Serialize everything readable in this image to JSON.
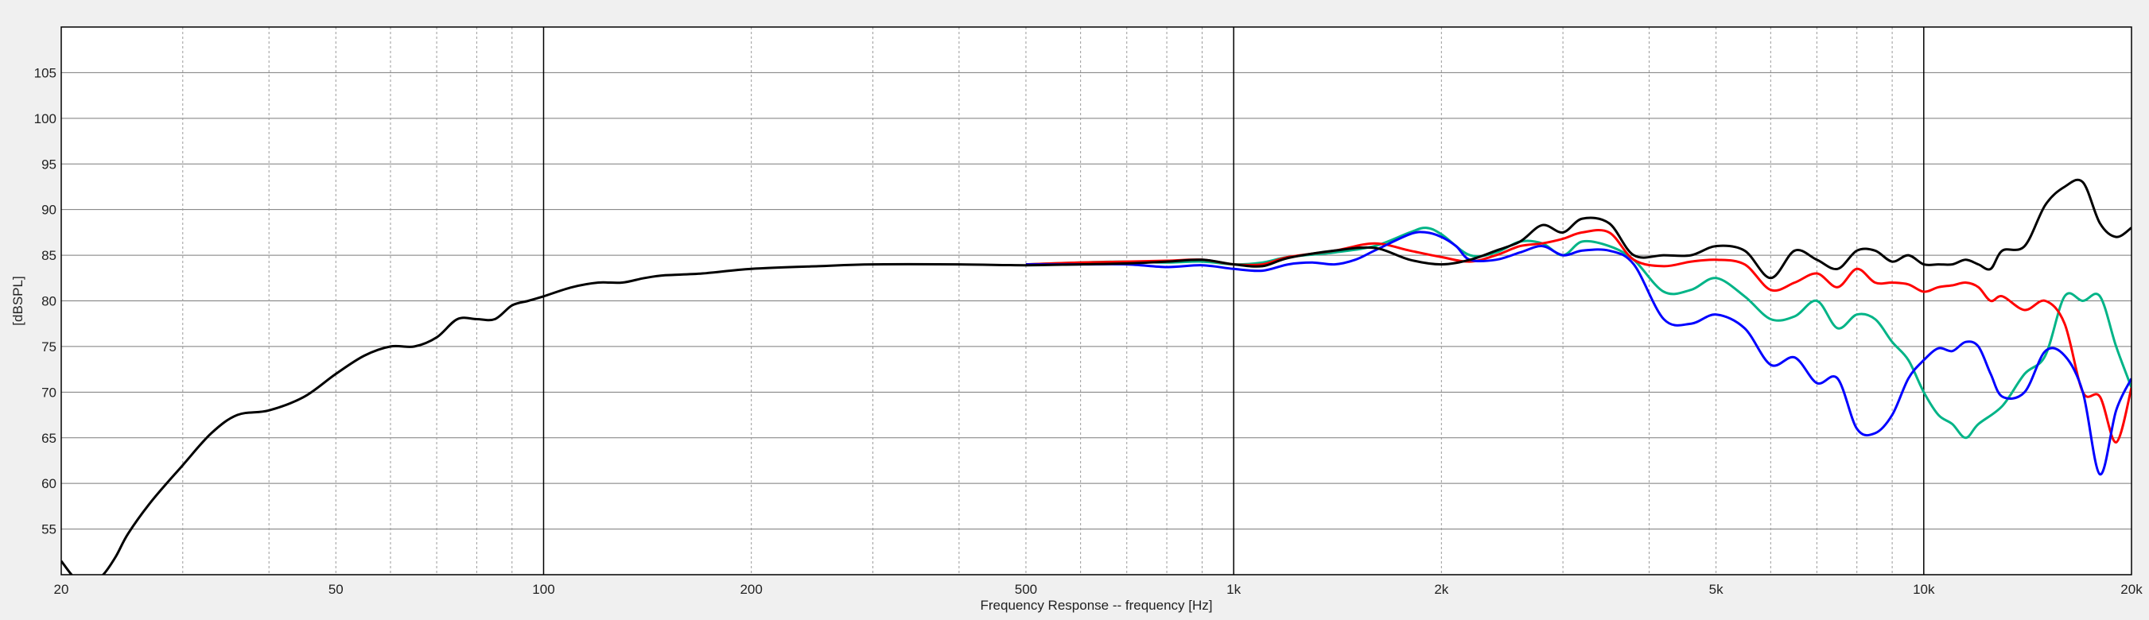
{
  "chart_data": {
    "type": "line",
    "title": "",
    "xlabel": "Frequency Response -- frequency [Hz]",
    "ylabel": "[dBSPL]",
    "x_scale": "log",
    "xlim": [
      20,
      20000
    ],
    "ylim": [
      50,
      110
    ],
    "grid": true,
    "x_tick_labels": [
      {
        "value": 20,
        "label": "20"
      },
      {
        "value": 50,
        "label": "50"
      },
      {
        "value": 100,
        "label": "100"
      },
      {
        "value": 200,
        "label": "200"
      },
      {
        "value": 500,
        "label": "500"
      },
      {
        "value": 1000,
        "label": "1k"
      },
      {
        "value": 2000,
        "label": "2k"
      },
      {
        "value": 5000,
        "label": "5k"
      },
      {
        "value": 10000,
        "label": "10k"
      },
      {
        "value": 20000,
        "label": "20k"
      }
    ],
    "y_tick_labels": [
      {
        "value": 55,
        "label": "55"
      },
      {
        "value": 60,
        "label": "60"
      },
      {
        "value": 65,
        "label": "65"
      },
      {
        "value": 70,
        "label": "70"
      },
      {
        "value": 75,
        "label": "75"
      },
      {
        "value": 80,
        "label": "80"
      },
      {
        "value": 85,
        "label": "85"
      },
      {
        "value": 90,
        "label": "90"
      },
      {
        "value": 95,
        "label": "95"
      },
      {
        "value": 100,
        "label": "100"
      },
      {
        "value": 105,
        "label": "105"
      }
    ],
    "series": [
      {
        "color": "#00b487",
        "x": [
          500,
          600,
          700,
          800,
          900,
          1000,
          1100,
          1200,
          1400,
          1600,
          1800,
          1900,
          2000,
          2200,
          2400,
          2600,
          2800,
          3000,
          3200,
          3500,
          3800,
          4200,
          4600,
          5000,
          5500,
          6000,
          6500,
          7000,
          7500,
          8000,
          8500,
          9000,
          9500,
          10000,
          10500,
          11000,
          11500,
          12000,
          13000,
          14000,
          15000,
          16000,
          17000,
          18000,
          19000,
          20000
        ],
        "y": [
          84.0,
          84.2,
          84.3,
          84.2,
          84.3,
          84.0,
          84.2,
          84.8,
          85.3,
          86.0,
          87.5,
          88.0,
          87.3,
          85.0,
          85.3,
          86.5,
          86.3,
          85.0,
          86.5,
          86.0,
          84.5,
          81.0,
          81.2,
          82.5,
          80.5,
          78.0,
          78.3,
          80.0,
          77.0,
          78.5,
          78.0,
          75.5,
          73.5,
          70.0,
          67.5,
          66.5,
          65.0,
          66.5,
          68.5,
          72.0,
          74.0,
          80.5,
          80.0,
          80.5,
          75.0,
          70.5
        ]
      },
      {
        "color": "#ff0000",
        "x": [
          500,
          600,
          700,
          800,
          900,
          1000,
          1100,
          1200,
          1400,
          1600,
          1800,
          2000,
          2200,
          2400,
          2600,
          2800,
          3000,
          3200,
          3500,
          3800,
          4200,
          4600,
          5000,
          5500,
          6000,
          6500,
          7000,
          7500,
          8000,
          8500,
          9000,
          9500,
          10000,
          10500,
          11000,
          11500,
          12000,
          12500,
          13000,
          14000,
          15000,
          16000,
          17000,
          18000,
          19000,
          20000
        ],
        "y": [
          84.0,
          84.2,
          84.3,
          84.4,
          84.5,
          84.0,
          84.0,
          84.8,
          85.5,
          86.3,
          85.5,
          84.8,
          84.3,
          85.0,
          86.0,
          86.3,
          86.8,
          87.5,
          87.5,
          84.5,
          83.8,
          84.3,
          84.5,
          84.0,
          81.2,
          82.0,
          83.0,
          81.5,
          83.5,
          82.0,
          82.0,
          81.8,
          81.0,
          81.5,
          81.7,
          82.0,
          81.5,
          80.0,
          80.5,
          79.0,
          80.0,
          77.5,
          70.0,
          69.5,
          64.5,
          70.5
        ]
      },
      {
        "color": "#0000ff",
        "x": [
          500,
          600,
          700,
          800,
          900,
          1000,
          1100,
          1200,
          1300,
          1400,
          1500,
          1600,
          1800,
          1900,
          2000,
          2100,
          2200,
          2400,
          2600,
          2800,
          3000,
          3200,
          3500,
          3800,
          4200,
          4600,
          5000,
          5500,
          6000,
          6500,
          7000,
          7500,
          8000,
          8500,
          9000,
          9500,
          10000,
          10500,
          11000,
          11500,
          12000,
          12500,
          13000,
          14000,
          15000,
          16000,
          17000,
          18000,
          19000,
          20000
        ],
        "y": [
          84.0,
          84.0,
          84.0,
          83.7,
          83.9,
          83.5,
          83.3,
          84.0,
          84.2,
          84.0,
          84.5,
          85.5,
          87.3,
          87.5,
          87.0,
          86.0,
          84.5,
          84.5,
          85.3,
          86.0,
          85.0,
          85.5,
          85.5,
          84.0,
          78.0,
          77.5,
          78.5,
          77.0,
          73.0,
          73.8,
          71.0,
          71.5,
          66.0,
          65.5,
          67.5,
          71.5,
          73.5,
          74.8,
          74.5,
          75.5,
          75.0,
          72.0,
          69.5,
          70.0,
          74.5,
          74.0,
          70.0,
          61.0,
          68.0,
          71.5
        ]
      },
      {
        "color": "#000000",
        "x": [
          20,
          21,
          22,
          23,
          24,
          25,
          27,
          30,
          33,
          36,
          40,
          45,
          50,
          55,
          60,
          65,
          70,
          75,
          80,
          85,
          90,
          95,
          100,
          110,
          120,
          130,
          140,
          150,
          170,
          200,
          250,
          300,
          400,
          500,
          600,
          700,
          800,
          900,
          1000,
          1100,
          1200,
          1400,
          1600,
          1800,
          2000,
          2200,
          2400,
          2600,
          2800,
          3000,
          3200,
          3500,
          3800,
          4200,
          4600,
          5000,
          5500,
          6000,
          6500,
          7000,
          7500,
          8000,
          8500,
          9000,
          9500,
          10000,
          10500,
          11000,
          11500,
          12000,
          12500,
          13000,
          14000,
          15000,
          16000,
          17000,
          18000,
          19000,
          20000
        ],
        "y": [
          51.5,
          49.5,
          49.0,
          50.0,
          52.0,
          54.5,
          58.0,
          62.0,
          65.5,
          67.5,
          68.0,
          69.5,
          72.0,
          74.0,
          75.0,
          75.0,
          76.0,
          78.0,
          78.0,
          78.0,
          79.5,
          80.0,
          80.5,
          81.5,
          82.0,
          82.0,
          82.5,
          82.8,
          83.0,
          83.5,
          83.8,
          84.0,
          84.0,
          83.9,
          84.0,
          84.1,
          84.3,
          84.5,
          84.0,
          83.8,
          84.7,
          85.5,
          85.8,
          84.5,
          84.0,
          84.5,
          85.5,
          86.5,
          88.3,
          87.5,
          89.0,
          88.5,
          85.0,
          85.0,
          85.0,
          86.0,
          85.5,
          82.5,
          85.5,
          84.5,
          83.5,
          85.5,
          85.5,
          84.3,
          85.0,
          84.0,
          84.0,
          84.0,
          84.5,
          84.0,
          83.5,
          85.5,
          86.0,
          90.5,
          92.5,
          93.0,
          88.5,
          87.0,
          88.0
        ]
      }
    ]
  }
}
